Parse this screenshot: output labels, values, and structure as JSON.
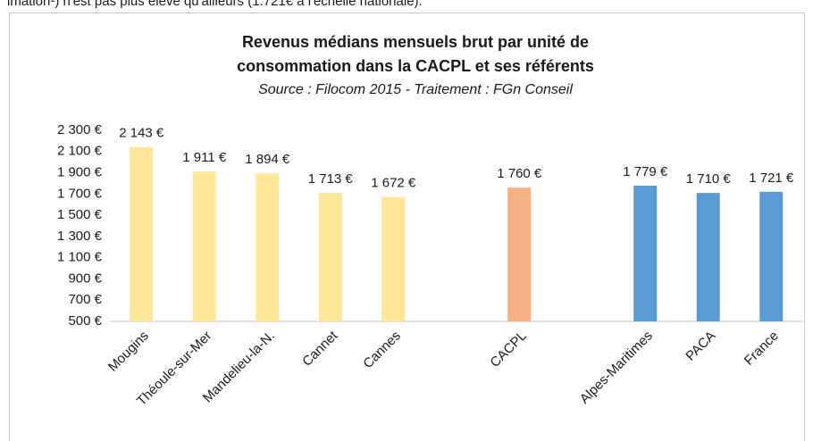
{
  "note": "imation¹) n'est pas plus élevé qu'ailleurs (1.721€ à l'échelle nationale).",
  "chart_data": {
    "type": "bar",
    "title": [
      "Revenus médians mensuels brut par unité de",
      "consommation dans la CACPL et ses référents"
    ],
    "subtitle": "Source : Filocom 2015 - Traitement : FGn Conseil",
    "categories": [
      "Mougins",
      "Théoule-sur-Mer",
      "Mandelieu-la-N.",
      "Cannet",
      "Cannes",
      null,
      "CACPL",
      null,
      "Alpes-Maritimes",
      "PACA",
      "France"
    ],
    "values": [
      2143,
      1911,
      1894,
      1713,
      1672,
      null,
      1760,
      null,
      1779,
      1710,
      1721
    ],
    "value_labels": [
      "2 143 €",
      "1 911 €",
      "1 894 €",
      "1 713 €",
      "1 672 €",
      null,
      "1 760 €",
      null,
      "1 779 €",
      "1 710 €",
      "1 721 €"
    ],
    "colors": [
      "#ffe699",
      "#ffe699",
      "#ffe699",
      "#ffe699",
      "#ffe699",
      null,
      "#f4b183",
      null,
      "#5b9bd5",
      "#5b9bd5",
      "#5b9bd5"
    ],
    "ylim": [
      500,
      2300
    ],
    "yticks": [
      {
        "value": 500,
        "label": "500 €"
      },
      {
        "value": 700,
        "label": "700 €"
      },
      {
        "value": 900,
        "label": "900 €"
      },
      {
        "value": 1100,
        "label": "1 100 €"
      },
      {
        "value": 1300,
        "label": "1 300 €"
      },
      {
        "value": 1500,
        "label": "1 500 €"
      },
      {
        "value": 1700,
        "label": "1 700 €"
      },
      {
        "value": 1900,
        "label": "1 900 €"
      },
      {
        "value": 2100,
        "label": "2 100 €"
      },
      {
        "value": 2300,
        "label": "2 300 €"
      }
    ],
    "grid": false
  }
}
